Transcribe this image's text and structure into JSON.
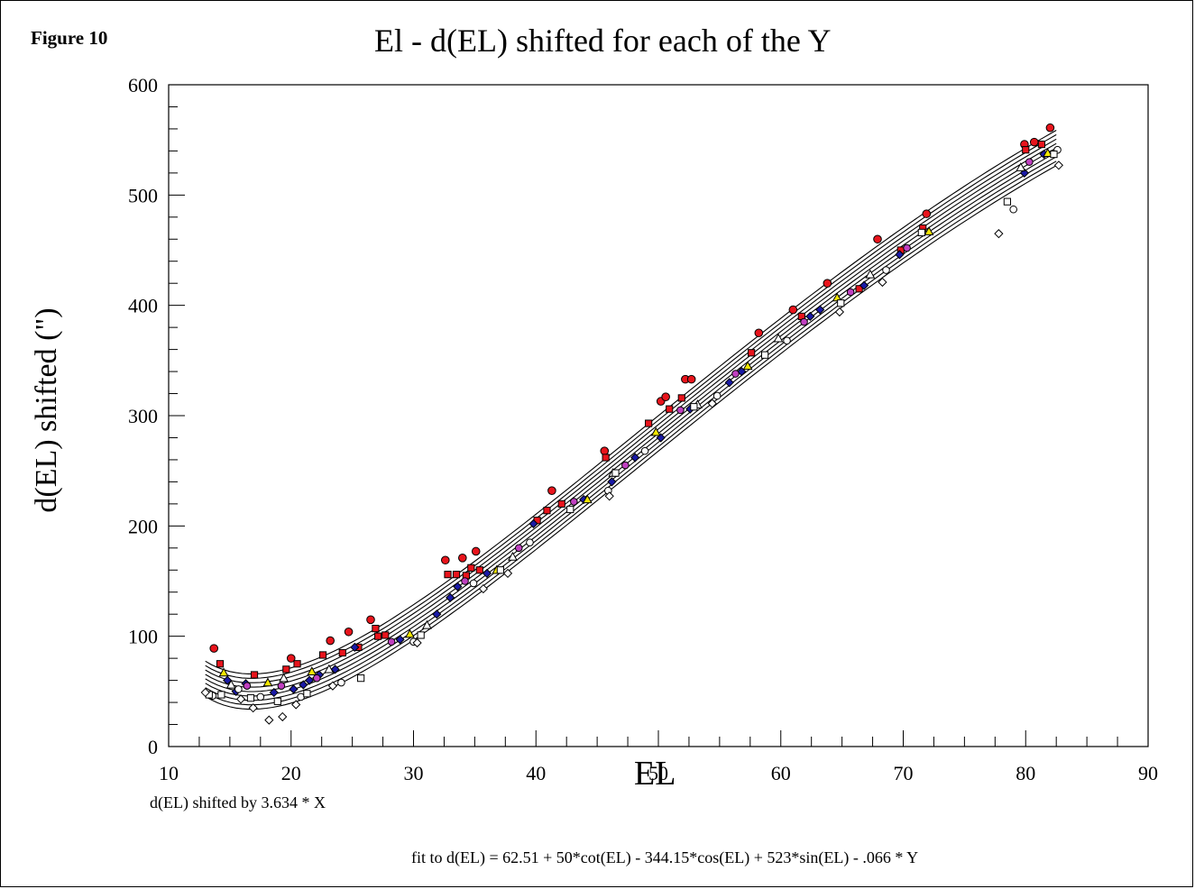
{
  "figure_label": "Figure 10",
  "chart_data": {
    "type": "scatter",
    "title": "El - d(EL) shifted for each of the Y",
    "xlabel": "EL",
    "ylabel": "d(EL) shifted (\")",
    "xlim": [
      10,
      90
    ],
    "ylim": [
      0,
      600
    ],
    "x_ticks": [
      "10",
      "20",
      "30",
      "40",
      "50",
      "60",
      "70",
      "80",
      "90"
    ],
    "y_ticks": [
      "0",
      "100",
      "200",
      "300",
      "400",
      "500",
      "600"
    ],
    "grid": false,
    "annotations": {
      "shift_note": "d(EL) shifted by 3.634 * X",
      "fit_note": "fit to d(EL) = 62.51 + 50*cot(EL) - 344.15*cos(EL) + 523*sin(EL) - .066 * Y"
    },
    "fit_curves": {
      "x_range": [
        13,
        82.5
      ],
      "offsets": [
        16,
        12,
        8,
        4,
        0,
        -4,
        -8,
        -12,
        -16
      ]
    },
    "series": [
      {
        "marker": "red-circle",
        "color": "#e8141c",
        "points": [
          [
            13.7,
            89
          ],
          [
            20,
            80
          ],
          [
            23.2,
            96
          ],
          [
            24.7,
            104
          ],
          [
            26.5,
            115
          ],
          [
            32.6,
            169
          ],
          [
            34,
            171
          ],
          [
            35.1,
            177
          ],
          [
            41.3,
            232
          ],
          [
            45.6,
            268
          ],
          [
            50.2,
            313
          ],
          [
            50.6,
            317
          ],
          [
            52.2,
            333
          ],
          [
            52.7,
            333
          ],
          [
            58.2,
            375
          ],
          [
            61,
            396
          ],
          [
            63.8,
            420
          ],
          [
            67.9,
            460
          ],
          [
            71.9,
            483
          ],
          [
            79.9,
            546
          ],
          [
            80.7,
            548
          ],
          [
            82,
            561
          ]
        ]
      },
      {
        "marker": "red-square",
        "color": "#e8141c",
        "points": [
          [
            14.2,
            75
          ],
          [
            17,
            65
          ],
          [
            19.6,
            70
          ],
          [
            20.5,
            75
          ],
          [
            22.6,
            83
          ],
          [
            24.2,
            85
          ],
          [
            25.5,
            90
          ],
          [
            26.9,
            107
          ],
          [
            27.1,
            100
          ],
          [
            27.7,
            101
          ],
          [
            32.8,
            156
          ],
          [
            33.5,
            156
          ],
          [
            34.3,
            155
          ],
          [
            34.7,
            162
          ],
          [
            35.4,
            160
          ],
          [
            40.1,
            205
          ],
          [
            40.9,
            214
          ],
          [
            42.1,
            220
          ],
          [
            45.7,
            262
          ],
          [
            49.2,
            293
          ],
          [
            50.9,
            306
          ],
          [
            51.9,
            316
          ],
          [
            57.6,
            357
          ],
          [
            61.7,
            390
          ],
          [
            66.4,
            415
          ],
          [
            69.8,
            450
          ],
          [
            71.6,
            470
          ],
          [
            80,
            541
          ],
          [
            81.3,
            546
          ]
        ]
      },
      {
        "marker": "blue-diamond",
        "color": "#1a1aa6",
        "points": [
          [
            14.8,
            60
          ],
          [
            15.5,
            50
          ],
          [
            16.3,
            57
          ],
          [
            18.6,
            49
          ],
          [
            20.2,
            52
          ],
          [
            21,
            56
          ],
          [
            21.5,
            60
          ],
          [
            22.3,
            65
          ],
          [
            23.6,
            70
          ],
          [
            25.2,
            90
          ],
          [
            28.9,
            97
          ],
          [
            31.9,
            120
          ],
          [
            33,
            135
          ],
          [
            33.6,
            145
          ],
          [
            36,
            157
          ],
          [
            39.8,
            202
          ],
          [
            43.9,
            224
          ],
          [
            46.2,
            240
          ],
          [
            48.1,
            262
          ],
          [
            50.2,
            280
          ],
          [
            52.6,
            306
          ],
          [
            55.8,
            330
          ],
          [
            56.8,
            340
          ],
          [
            62.4,
            390
          ],
          [
            63.2,
            396
          ],
          [
            66.8,
            418
          ],
          [
            69.7,
            446
          ],
          [
            79.9,
            520
          ],
          [
            81.5,
            537
          ]
        ]
      },
      {
        "marker": "magenta-circle",
        "color": "#c040c0",
        "points": [
          [
            16.4,
            55
          ],
          [
            19.2,
            55
          ],
          [
            22.1,
            62
          ],
          [
            28.2,
            95
          ],
          [
            34.2,
            150
          ],
          [
            38.6,
            180
          ],
          [
            43.1,
            222
          ],
          [
            47.3,
            255
          ],
          [
            51.8,
            305
          ],
          [
            56.3,
            338
          ],
          [
            61.9,
            385
          ],
          [
            65.7,
            412
          ],
          [
            70.3,
            452
          ],
          [
            80.3,
            530
          ]
        ]
      },
      {
        "marker": "yellow-triangle",
        "color": "#f2e600",
        "points": [
          [
            14.5,
            67
          ],
          [
            18.1,
            58
          ],
          [
            21.7,
            68
          ],
          [
            29.7,
            102
          ],
          [
            36.8,
            160
          ],
          [
            44.2,
            224
          ],
          [
            49.8,
            285
          ],
          [
            57.3,
            345
          ],
          [
            64.6,
            407
          ],
          [
            72.1,
            467
          ],
          [
            81.8,
            538
          ]
        ]
      },
      {
        "marker": "white-triangle",
        "color": "#ffffff",
        "points": [
          [
            15.1,
            56
          ],
          [
            19.4,
            62
          ],
          [
            23.1,
            70
          ],
          [
            31.1,
            110
          ],
          [
            38.1,
            172
          ],
          [
            46.3,
            248
          ],
          [
            53.2,
            310
          ],
          [
            59.8,
            370
          ],
          [
            67.3,
            428
          ],
          [
            79.6,
            525
          ]
        ]
      },
      {
        "marker": "white-circle",
        "color": "#ffffff",
        "points": [
          [
            13.6,
            46
          ],
          [
            15.7,
            52
          ],
          [
            17.5,
            45
          ],
          [
            20.8,
            45
          ],
          [
            24.1,
            58
          ],
          [
            30,
            95
          ],
          [
            34.9,
            148
          ],
          [
            39.5,
            185
          ],
          [
            45.9,
            232
          ],
          [
            48.9,
            268
          ],
          [
            54.8,
            318
          ],
          [
            60.5,
            368
          ],
          [
            68.6,
            432
          ],
          [
            79,
            487
          ],
          [
            82.6,
            541
          ]
        ]
      },
      {
        "marker": "white-square",
        "color": "#ffffff",
        "points": [
          [
            13.3,
            47
          ],
          [
            14.3,
            47
          ],
          [
            16.7,
            44
          ],
          [
            18.9,
            41
          ],
          [
            21.3,
            48
          ],
          [
            25.7,
            62
          ],
          [
            30.6,
            101
          ],
          [
            37.1,
            160
          ],
          [
            42.8,
            215
          ],
          [
            46.5,
            248
          ],
          [
            52.9,
            308
          ],
          [
            58.7,
            355
          ],
          [
            64.9,
            402
          ],
          [
            71.5,
            466
          ],
          [
            78.5,
            494
          ],
          [
            82.3,
            537
          ]
        ]
      },
      {
        "marker": "white-diamond",
        "color": "#ffffff",
        "points": [
          [
            13,
            49
          ],
          [
            15.9,
            43
          ],
          [
            16.9,
            35
          ],
          [
            18.2,
            24
          ],
          [
            19.3,
            27
          ],
          [
            20.4,
            38
          ],
          [
            23.4,
            55
          ],
          [
            30.3,
            94
          ],
          [
            35.7,
            143
          ],
          [
            37.7,
            157
          ],
          [
            46,
            227
          ],
          [
            54.4,
            311
          ],
          [
            64.8,
            394
          ],
          [
            68.3,
            421
          ],
          [
            77.8,
            465
          ],
          [
            82.7,
            527
          ]
        ]
      }
    ]
  }
}
